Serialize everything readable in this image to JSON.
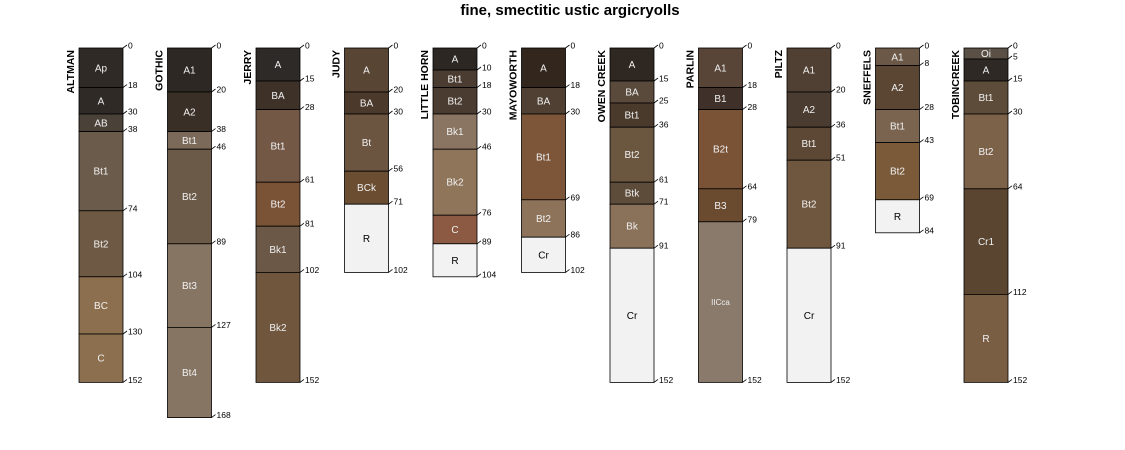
{
  "title": "fine, smectitic ustic argicryolls",
  "profiles": [
    {
      "name": "ALTMAN",
      "horizons": [
        {
          "name": "Ap",
          "top": 0,
          "bottom": 18,
          "color": "#2f2a26"
        },
        {
          "name": "A",
          "top": 18,
          "bottom": 30,
          "color": "#2f2a26"
        },
        {
          "name": "AB",
          "top": 30,
          "bottom": 38,
          "color": "#4a4138"
        },
        {
          "name": "Bt1",
          "top": 38,
          "bottom": 74,
          "color": "#6b5b4b"
        },
        {
          "name": "Bt2",
          "top": 74,
          "bottom": 104,
          "color": "#6e5a44"
        },
        {
          "name": "BC",
          "top": 104,
          "bottom": 130,
          "color": "#8c6f4f"
        },
        {
          "name": "C",
          "top": 130,
          "bottom": 152,
          "color": "#8c6f4f"
        }
      ]
    },
    {
      "name": "GOTHIC",
      "horizons": [
        {
          "name": "A1",
          "top": 0,
          "bottom": 20,
          "color": "#2e2824"
        },
        {
          "name": "A2",
          "top": 20,
          "bottom": 38,
          "color": "#3a2f27"
        },
        {
          "name": "Bt1",
          "top": 38,
          "bottom": 46,
          "color": "#7b6a59"
        },
        {
          "name": "Bt2",
          "top": 46,
          "bottom": 89,
          "color": "#6b5a47"
        },
        {
          "name": "Bt3",
          "top": 89,
          "bottom": 127,
          "color": "#877563"
        },
        {
          "name": "Bt4",
          "top": 127,
          "bottom": 168,
          "color": "#877563"
        }
      ]
    },
    {
      "name": "JERRY",
      "horizons": [
        {
          "name": "A",
          "top": 0,
          "bottom": 15,
          "color": "#2e2a27"
        },
        {
          "name": "BA",
          "top": 15,
          "bottom": 28,
          "color": "#3d3128"
        },
        {
          "name": "Bt1",
          "top": 28,
          "bottom": 61,
          "color": "#735846"
        },
        {
          "name": "Bt2",
          "top": 61,
          "bottom": 81,
          "color": "#7a5236"
        },
        {
          "name": "Bk1",
          "top": 81,
          "bottom": 102,
          "color": "#6b5847"
        },
        {
          "name": "Bk2",
          "top": 102,
          "bottom": 152,
          "color": "#6f563d"
        }
      ]
    },
    {
      "name": "JUDY",
      "horizons": [
        {
          "name": "A",
          "top": 0,
          "bottom": 20,
          "color": "#584533"
        },
        {
          "name": "BA",
          "top": 20,
          "bottom": 30,
          "color": "#4b3a2b"
        },
        {
          "name": "Bt",
          "top": 30,
          "bottom": 56,
          "color": "#6b5440"
        },
        {
          "name": "BCk",
          "top": 56,
          "bottom": 71,
          "color": "#6b4e32"
        },
        {
          "name": "R",
          "top": 71,
          "bottom": 102,
          "color": "#f2f2f2"
        }
      ]
    },
    {
      "name": "LITTLE HORN",
      "horizons": [
        {
          "name": "A",
          "top": 0,
          "bottom": 10,
          "color": "#2d2723"
        },
        {
          "name": "Bt1",
          "top": 10,
          "bottom": 18,
          "color": "#4a3c30"
        },
        {
          "name": "Bt2",
          "top": 18,
          "bottom": 30,
          "color": "#4a3c30"
        },
        {
          "name": "Bk1",
          "top": 30,
          "bottom": 46,
          "color": "#8a7562"
        },
        {
          "name": "Bk2",
          "top": 46,
          "bottom": 76,
          "color": "#8f765b"
        },
        {
          "name": "C",
          "top": 76,
          "bottom": 89,
          "color": "#8c5a42"
        },
        {
          "name": "R",
          "top": 89,
          "bottom": 104,
          "color": "#f2f2f2"
        }
      ]
    },
    {
      "name": "MAYOWORTH",
      "horizons": [
        {
          "name": "A",
          "top": 0,
          "bottom": 18,
          "color": "#33261d"
        },
        {
          "name": "BA",
          "top": 18,
          "bottom": 30,
          "color": "#4f4033"
        },
        {
          "name": "Bt1",
          "top": 30,
          "bottom": 69,
          "color": "#7d563a"
        },
        {
          "name": "Bt2",
          "top": 69,
          "bottom": 86,
          "color": "#8c735a"
        },
        {
          "name": "Cr",
          "top": 86,
          "bottom": 102,
          "color": "#f2f2f2"
        }
      ]
    },
    {
      "name": "OWEN CREEK",
      "horizons": [
        {
          "name": "A",
          "top": 0,
          "bottom": 15,
          "color": "#2f2822"
        },
        {
          "name": "BA",
          "top": 15,
          "bottom": 25,
          "color": "#5a4a3c"
        },
        {
          "name": "Bt1",
          "top": 25,
          "bottom": 36,
          "color": "#4a3a2c"
        },
        {
          "name": "Bt2",
          "top": 36,
          "bottom": 61,
          "color": "#6b5640"
        },
        {
          "name": "Btk",
          "top": 61,
          "bottom": 71,
          "color": "#5e4c3b"
        },
        {
          "name": "Bk",
          "top": 71,
          "bottom": 91,
          "color": "#8a7159"
        },
        {
          "name": "Cr",
          "top": 91,
          "bottom": 152,
          "color": "#f2f2f2"
        }
      ]
    },
    {
      "name": "PARLIN",
      "horizons": [
        {
          "name": "A1",
          "top": 0,
          "bottom": 18,
          "color": "#584538"
        },
        {
          "name": "B1",
          "top": 18,
          "bottom": 28,
          "color": "#3f3129"
        },
        {
          "name": "B2t",
          "top": 28,
          "bottom": 64,
          "color": "#7a5236"
        },
        {
          "name": "B3",
          "top": 64,
          "bottom": 79,
          "color": "#6b4b30"
        },
        {
          "name": "IICca",
          "top": 79,
          "bottom": 152,
          "color": "#8a7a6b"
        }
      ]
    },
    {
      "name": "PILTZ",
      "horizons": [
        {
          "name": "A1",
          "top": 0,
          "bottom": 20,
          "color": "#4f4033"
        },
        {
          "name": "A2",
          "top": 20,
          "bottom": 36,
          "color": "#4a3c30"
        },
        {
          "name": "Bt1",
          "top": 36,
          "bottom": 51,
          "color": "#5c4834"
        },
        {
          "name": "Bt2",
          "top": 51,
          "bottom": 91,
          "color": "#6f573f"
        },
        {
          "name": "Cr",
          "top": 91,
          "bottom": 152,
          "color": "#f2f2f2"
        }
      ]
    },
    {
      "name": "SNEFFELS",
      "horizons": [
        {
          "name": "A1",
          "top": 0,
          "bottom": 8,
          "color": "#6b5847"
        },
        {
          "name": "A2",
          "top": 8,
          "bottom": 28,
          "color": "#5a4632"
        },
        {
          "name": "Bt1",
          "top": 28,
          "bottom": 43,
          "color": "#7a644f"
        },
        {
          "name": "Bt2",
          "top": 43,
          "bottom": 69,
          "color": "#7a5a38"
        },
        {
          "name": "R",
          "top": 69,
          "bottom": 84,
          "color": "#f2f2f2"
        }
      ]
    },
    {
      "name": "TOBINCREEK",
      "horizons": [
        {
          "name": "Oi",
          "top": 0,
          "bottom": 5,
          "color": "#5a5046"
        },
        {
          "name": "A",
          "top": 5,
          "bottom": 15,
          "color": "#2e2925"
        },
        {
          "name": "Bt1",
          "top": 15,
          "bottom": 30,
          "color": "#5e4c3a"
        },
        {
          "name": "Bt2",
          "top": 30,
          "bottom": 64,
          "color": "#7b6249"
        },
        {
          "name": "Cr1",
          "top": 64,
          "bottom": 112,
          "color": "#5a4530"
        },
        {
          "name": "R",
          "top": 112,
          "bottom": 152,
          "color": "#7a5e44"
        }
      ]
    }
  ]
}
